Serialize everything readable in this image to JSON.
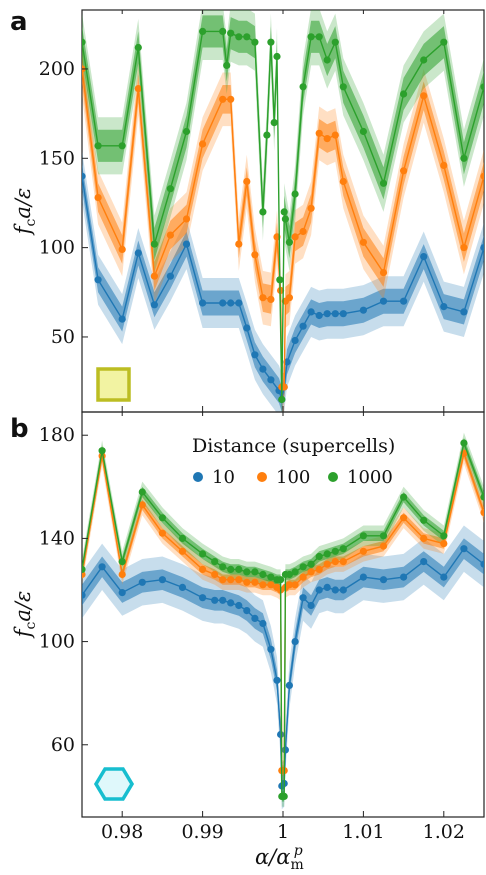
{
  "figure": {
    "xlabel": "α/α",
    "xlabel_sup": "p",
    "xlabel_sub": "m",
    "ylabel_main": "f",
    "ylabel_sub": "c",
    "ylabel_tail": "a/ε",
    "legend_title": "Distance (supercells)",
    "colors": {
      "10": "#1f77b4",
      "100": "#ff7f0e",
      "1000": "#2ca02c"
    },
    "icons": {
      "a": "square-icon",
      "b": "hexagon-icon"
    },
    "icon_colors": {
      "square_edge": "#bcbd22",
      "square_fill": "#f2f3a2",
      "hex_edge": "#17becf",
      "hex_fill": "#dff8fb"
    }
  },
  "chart_data": [
    {
      "panel": "a",
      "type": "line",
      "title": "",
      "xlabel": "",
      "ylabel": "f_c a/ε",
      "xlim": [
        0.975,
        1.025
      ],
      "ylim": [
        8,
        233
      ],
      "xticks": [
        0.98,
        0.99,
        1.0,
        1.01,
        1.02
      ],
      "xtick_labels": [
        "0.98",
        "0.99",
        "1",
        "1.01",
        "1.02"
      ],
      "yticks": [
        50,
        100,
        150,
        200
      ],
      "ytick_labels": [
        "50",
        "100",
        "150",
        "200"
      ],
      "grid": false,
      "series": [
        {
          "name": "10",
          "x": [
            0.975,
            0.977,
            0.98,
            0.982,
            0.984,
            0.986,
            0.988,
            0.99,
            0.9925,
            0.9935,
            0.9945,
            0.9955,
            0.9965,
            0.9975,
            0.9985,
            0.9995,
            0.99985,
            1.00015,
            1.0005,
            1.0015,
            1.0025,
            1.0035,
            1.0045,
            1.0055,
            1.0065,
            1.0075,
            1.01,
            1.0125,
            1.015,
            1.0175,
            1.02,
            1.0225,
            1.025
          ],
          "y": [
            140,
            82,
            60,
            97,
            68,
            84,
            102,
            69,
            69,
            69,
            69,
            55,
            40,
            32,
            26,
            20,
            15,
            22,
            36,
            48,
            56,
            64,
            62,
            63,
            63,
            63,
            65,
            70,
            70,
            95,
            67,
            64,
            100
          ]
        },
        {
          "name": "100",
          "x": [
            0.975,
            0.977,
            0.98,
            0.982,
            0.984,
            0.986,
            0.988,
            0.99,
            0.9925,
            0.9935,
            0.9945,
            0.9955,
            0.9965,
            0.9975,
            0.9985,
            0.99925,
            0.9997,
            0.99985,
            1.00015,
            1.0003,
            1.0008,
            1.0015,
            1.0025,
            1.0035,
            1.0045,
            1.0055,
            1.0065,
            1.0075,
            1.01,
            1.0125,
            1.015,
            1.0175,
            1.02,
            1.0225,
            1.025
          ],
          "y": [
            200,
            128,
            99,
            189,
            84,
            107,
            116,
            158,
            183,
            183,
            102,
            137,
            96,
            72,
            71,
            106,
            76,
            22,
            22,
            70,
            72,
            106,
            109,
            122,
            164,
            161,
            163,
            137,
            103,
            86,
            143,
            185,
            146,
            100,
            140
          ]
        },
        {
          "name": "1000",
          "x": [
            0.975,
            0.977,
            0.98,
            0.982,
            0.984,
            0.986,
            0.988,
            0.99,
            0.9925,
            0.993,
            0.9935,
            0.9945,
            0.9955,
            0.9965,
            0.9975,
            0.998,
            0.9985,
            0.9989,
            0.99925,
            0.9996,
            0.99985,
            1.00015,
            1.0003,
            1.0008,
            1.0015,
            1.0025,
            1.0035,
            1.0045,
            1.0055,
            1.0065,
            1.0075,
            1.01,
            1.0125,
            1.015,
            1.0175,
            1.02,
            1.0225,
            1.025
          ],
          "y": [
            215,
            157,
            157,
            212,
            102,
            133,
            165,
            221,
            221,
            202,
            220,
            218,
            218,
            215,
            120,
            163,
            215,
            170,
            207,
            82,
            15,
            120,
            116,
            103,
            130,
            190,
            218,
            218,
            205,
            215,
            190,
            165,
            136,
            186,
            205,
            215,
            150,
            190
          ]
        }
      ]
    },
    {
      "panel": "b",
      "type": "line",
      "title": "",
      "xlabel": "α/α_m^p",
      "ylabel": "f_c a/ε",
      "xlim": [
        0.975,
        1.025
      ],
      "ylim": [
        32,
        189
      ],
      "xticks": [
        0.98,
        0.99,
        1.0,
        1.01,
        1.02
      ],
      "xtick_labels": [
        "0.98",
        "0.99",
        "1",
        "1.01",
        "1.02"
      ],
      "yticks": [
        60,
        100,
        140,
        180
      ],
      "ytick_labels": [
        "60",
        "100",
        "140",
        "180"
      ],
      "grid": false,
      "legend_title": "Distance (supercells)",
      "legend_position": "top",
      "series": [
        {
          "name": "10",
          "x": [
            0.975,
            0.9775,
            0.98,
            0.9825,
            0.985,
            0.9875,
            0.99,
            0.9915,
            0.9925,
            0.9935,
            0.9945,
            0.9955,
            0.9965,
            0.9975,
            0.9985,
            0.99925,
            0.9997,
            0.99985,
            1.00015,
            1.0003,
            1.0008,
            1.0015,
            1.0025,
            1.0035,
            1.0045,
            1.0055,
            1.0065,
            1.0075,
            1.01,
            1.0125,
            1.015,
            1.0175,
            1.02,
            1.0225,
            1.025
          ],
          "y": [
            118,
            129,
            119,
            123,
            124,
            121,
            117,
            116,
            116,
            115,
            114,
            112,
            109,
            107,
            97,
            85,
            64,
            44,
            45,
            58,
            83,
            100,
            117,
            114,
            120,
            121,
            120,
            120,
            125,
            124,
            125,
            131,
            125,
            136,
            130
          ]
        },
        {
          "name": "100",
          "x": [
            0.975,
            0.9775,
            0.98,
            0.9825,
            0.985,
            0.9875,
            0.99,
            0.9915,
            0.9925,
            0.9935,
            0.9945,
            0.9955,
            0.9965,
            0.9975,
            0.9985,
            0.99925,
            0.9997,
            0.99985,
            1.00015,
            1.0003,
            1.0008,
            1.0015,
            1.0025,
            1.0035,
            1.0045,
            1.0055,
            1.0065,
            1.0075,
            1.01,
            1.0125,
            1.015,
            1.0175,
            1.02,
            1.0225,
            1.025
          ],
          "y": [
            126,
            172,
            126,
            153,
            142,
            135,
            128,
            126,
            124,
            124,
            124,
            123,
            123,
            122,
            122,
            121,
            120,
            50,
            50,
            121,
            122,
            122,
            125,
            127,
            128,
            130,
            131,
            131,
            135,
            137,
            148,
            140,
            138,
            173,
            150
          ]
        },
        {
          "name": "1000",
          "x": [
            0.975,
            0.9775,
            0.98,
            0.9825,
            0.985,
            0.9875,
            0.99,
            0.9915,
            0.9925,
            0.9935,
            0.9945,
            0.9955,
            0.9965,
            0.9975,
            0.9985,
            0.99925,
            0.9997,
            0.99985,
            1.00015,
            1.0003,
            1.0008,
            1.0015,
            1.0025,
            1.0035,
            1.0045,
            1.0055,
            1.0065,
            1.0075,
            1.01,
            1.0125,
            1.015,
            1.0175,
            1.02,
            1.0225,
            1.025
          ],
          "y": [
            128,
            174,
            131,
            158,
            148,
            140,
            134,
            131,
            129,
            128,
            128,
            127,
            127,
            126,
            125,
            124,
            124,
            40,
            40,
            126,
            126,
            127,
            129,
            130,
            133,
            134,
            135,
            136,
            141,
            141,
            156,
            147,
            141,
            177,
            156
          ]
        }
      ]
    }
  ]
}
